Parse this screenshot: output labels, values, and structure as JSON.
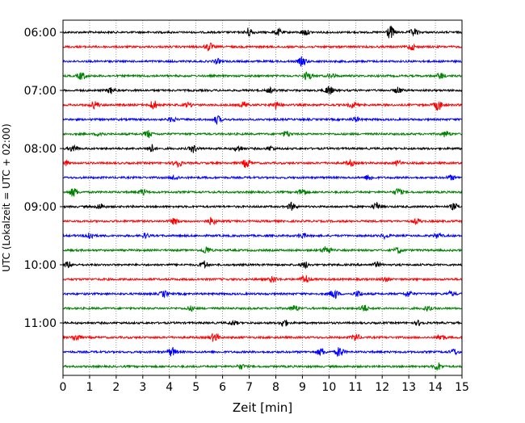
{
  "chart_data": {
    "type": "line",
    "title": "",
    "xlabel": "Zeit  [min]",
    "ylabel": "UTC (Lokalzeit = UTC + 02:00)",
    "xlim": [
      0,
      15
    ],
    "x_ticks": [
      "0",
      "1",
      "2",
      "3",
      "4",
      "5",
      "6",
      "7",
      "8",
      "9",
      "10",
      "11",
      "12",
      "13",
      "14",
      "15"
    ],
    "y_tick_labels": [
      "06:00",
      "07:00",
      "08:00",
      "09:00",
      "10:00",
      "11:00"
    ],
    "y_tick_rows": [
      0,
      4,
      8,
      12,
      16,
      20
    ],
    "grid": "vertical dotted",
    "row_colors": [
      "#000000",
      "#ff0000",
      "#0000ff",
      "#008000"
    ],
    "rows_start": "06:00",
    "row_interval_min": 15,
    "row_count": 24,
    "bursts": [
      [
        [
          7.0,
          0.6
        ],
        [
          8.1,
          0.4
        ],
        [
          9.1,
          0.4
        ],
        [
          12.3,
          0.9
        ],
        [
          13.2,
          0.5
        ]
      ],
      [
        [
          5.5,
          0.5
        ],
        [
          13.1,
          0.4
        ]
      ],
      [
        [
          9.0,
          0.6
        ],
        [
          5.8,
          0.3
        ]
      ],
      [
        [
          0.7,
          0.5
        ],
        [
          9.2,
          0.6
        ],
        [
          10.1,
          0.3
        ],
        [
          14.2,
          0.4
        ]
      ],
      [
        [
          1.8,
          0.4
        ],
        [
          7.8,
          0.3
        ],
        [
          10.0,
          0.6
        ],
        [
          12.6,
          0.4
        ]
      ],
      [
        [
          1.2,
          0.5
        ],
        [
          3.4,
          0.6
        ],
        [
          4.7,
          0.3
        ],
        [
          6.8,
          0.4
        ],
        [
          8.0,
          0.5
        ],
        [
          10.9,
          0.4
        ],
        [
          14.1,
          0.7
        ]
      ],
      [
        [
          5.8,
          0.5
        ],
        [
          4.1,
          0.3
        ],
        [
          11.0,
          0.3
        ]
      ],
      [
        [
          1.4,
          0.3
        ],
        [
          3.2,
          0.5
        ],
        [
          8.4,
          0.4
        ],
        [
          14.4,
          0.4
        ]
      ],
      [
        [
          0.4,
          0.5
        ],
        [
          3.3,
          0.6
        ],
        [
          4.9,
          0.5
        ],
        [
          6.6,
          0.4
        ],
        [
          7.8,
          0.3
        ]
      ],
      [
        [
          0.1,
          0.3
        ],
        [
          4.3,
          0.6
        ],
        [
          6.9,
          0.6
        ],
        [
          10.8,
          0.4
        ],
        [
          12.6,
          0.3
        ]
      ],
      [
        [
          4.2,
          0.3
        ],
        [
          11.5,
          0.4
        ],
        [
          14.6,
          0.3
        ]
      ],
      [
        [
          0.4,
          0.6
        ],
        [
          3.0,
          0.4
        ],
        [
          9.0,
          0.5
        ],
        [
          12.6,
          0.5
        ]
      ],
      [
        [
          1.4,
          0.4
        ],
        [
          8.6,
          0.5
        ],
        [
          11.8,
          0.5
        ],
        [
          14.7,
          0.4
        ]
      ],
      [
        [
          4.2,
          0.4
        ],
        [
          5.6,
          0.5
        ],
        [
          13.3,
          0.3
        ]
      ],
      [
        [
          1.0,
          0.5
        ],
        [
          3.1,
          0.3
        ],
        [
          9.0,
          0.3
        ],
        [
          12.1,
          0.3
        ],
        [
          14.1,
          0.3
        ]
      ],
      [
        [
          5.4,
          0.5
        ],
        [
          9.9,
          0.6
        ],
        [
          12.6,
          0.4
        ]
      ],
      [
        [
          0.2,
          0.4
        ],
        [
          5.3,
          0.5
        ],
        [
          9.1,
          0.4
        ],
        [
          11.8,
          0.3
        ]
      ],
      [
        [
          7.9,
          0.4
        ],
        [
          9.1,
          0.6
        ],
        [
          12.1,
          0.3
        ]
      ],
      [
        [
          3.8,
          0.4
        ],
        [
          10.2,
          0.7
        ],
        [
          11.1,
          0.4
        ],
        [
          13.0,
          0.4
        ],
        [
          14.6,
          0.3
        ]
      ],
      [
        [
          4.8,
          0.3
        ],
        [
          8.7,
          0.4
        ],
        [
          11.3,
          0.5
        ],
        [
          13.7,
          0.3
        ]
      ],
      [
        [
          8.3,
          0.5
        ],
        [
          6.4,
          0.3
        ],
        [
          13.4,
          0.3
        ]
      ],
      [
        [
          0.5,
          0.5
        ],
        [
          5.7,
          0.6
        ],
        [
          11.0,
          0.5
        ],
        [
          14.2,
          0.5
        ]
      ],
      [
        [
          4.1,
          0.6
        ],
        [
          9.7,
          0.5
        ],
        [
          10.4,
          0.7
        ],
        [
          14.7,
          0.4
        ]
      ],
      [
        [
          14.1,
          0.5
        ],
        [
          6.7,
          0.3
        ]
      ]
    ]
  }
}
